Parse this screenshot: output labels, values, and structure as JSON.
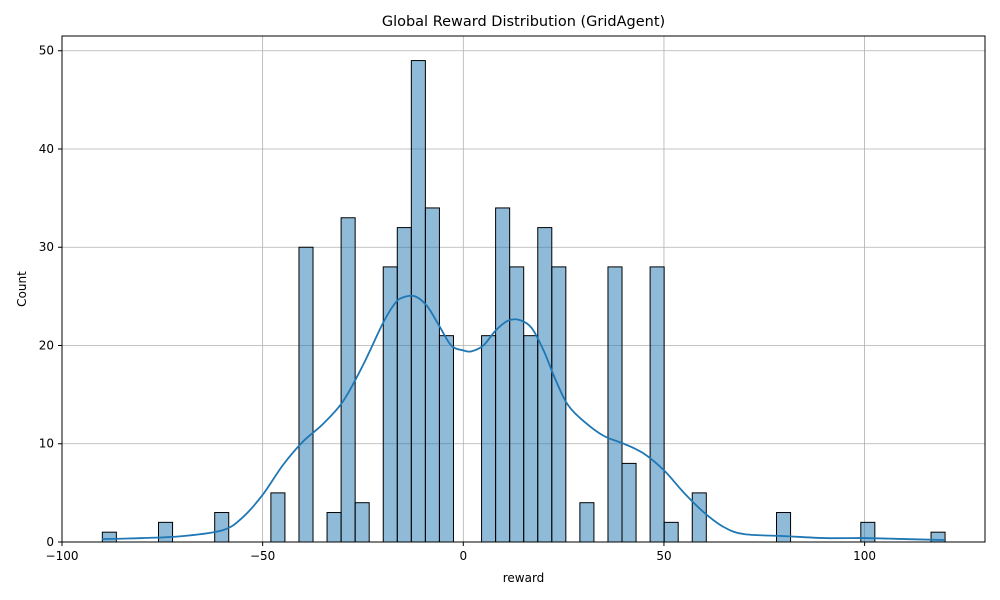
{
  "chart_data": {
    "type": "bar",
    "title": "Global Reward Distribution (GridAgent)",
    "xlabel": "reward",
    "ylabel": "Count",
    "xlim": [
      -100,
      130
    ],
    "ylim": [
      0,
      51.5
    ],
    "xticks": [
      -100,
      -50,
      0,
      50,
      100
    ],
    "yticks": [
      0,
      10,
      20,
      30,
      40,
      50
    ],
    "grid": true,
    "bin_width": 3.5,
    "bar_color": "#1f77b4",
    "bar_alpha": 0.5,
    "bar_edge_color": "#000000",
    "kde_color": "#1f77b4",
    "bars": [
      {
        "x": -88.2,
        "count": 1
      },
      {
        "x": -74.2,
        "count": 2
      },
      {
        "x": -60.2,
        "count": 3
      },
      {
        "x": -46.2,
        "count": 5
      },
      {
        "x": -39.2,
        "count": 30
      },
      {
        "x": -32.2,
        "count": 3
      },
      {
        "x": -28.7,
        "count": 33
      },
      {
        "x": -25.2,
        "count": 4
      },
      {
        "x": -18.2,
        "count": 28
      },
      {
        "x": -14.7,
        "count": 32
      },
      {
        "x": -11.2,
        "count": 49
      },
      {
        "x": -7.7,
        "count": 34
      },
      {
        "x": -4.2,
        "count": 21
      },
      {
        "x": 6.3,
        "count": 21
      },
      {
        "x": 9.8,
        "count": 34
      },
      {
        "x": 13.3,
        "count": 28
      },
      {
        "x": 16.8,
        "count": 21
      },
      {
        "x": 20.3,
        "count": 32
      },
      {
        "x": 23.8,
        "count": 28
      },
      {
        "x": 30.8,
        "count": 4
      },
      {
        "x": 37.8,
        "count": 28
      },
      {
        "x": 41.3,
        "count": 8
      },
      {
        "x": 48.3,
        "count": 28
      },
      {
        "x": 51.8,
        "count": 2
      },
      {
        "x": 58.8,
        "count": 5
      },
      {
        "x": 79.8,
        "count": 3
      },
      {
        "x": 100.8,
        "count": 2
      },
      {
        "x": 118.3,
        "count": 1
      }
    ],
    "kde": [
      [
        -90,
        0.3
      ],
      [
        -80,
        0.4
      ],
      [
        -70,
        0.6
      ],
      [
        -60,
        1.2
      ],
      [
        -55,
        2.5
      ],
      [
        -50,
        4.8
      ],
      [
        -45,
        7.8
      ],
      [
        -40,
        10.2
      ],
      [
        -35,
        12.0
      ],
      [
        -30,
        14.3
      ],
      [
        -25,
        18.0
      ],
      [
        -20,
        22.3
      ],
      [
        -17,
        24.3
      ],
      [
        -15,
        24.9
      ],
      [
        -12,
        25.0
      ],
      [
        -9,
        24.0
      ],
      [
        -6,
        22.0
      ],
      [
        -3,
        20.0
      ],
      [
        0,
        19.5
      ],
      [
        2,
        19.4
      ],
      [
        5,
        20.0
      ],
      [
        8,
        21.5
      ],
      [
        11,
        22.5
      ],
      [
        14,
        22.6
      ],
      [
        17,
        21.8
      ],
      [
        20,
        19.5
      ],
      [
        23,
        16.5
      ],
      [
        26,
        14.0
      ],
      [
        30,
        12.3
      ],
      [
        35,
        10.8
      ],
      [
        40,
        10.0
      ],
      [
        45,
        9.0
      ],
      [
        50,
        7.3
      ],
      [
        55,
        5.0
      ],
      [
        60,
        3.0
      ],
      [
        65,
        1.5
      ],
      [
        70,
        0.8
      ],
      [
        80,
        0.6
      ],
      [
        90,
        0.4
      ],
      [
        100,
        0.4
      ],
      [
        110,
        0.3
      ],
      [
        120,
        0.2
      ]
    ]
  }
}
